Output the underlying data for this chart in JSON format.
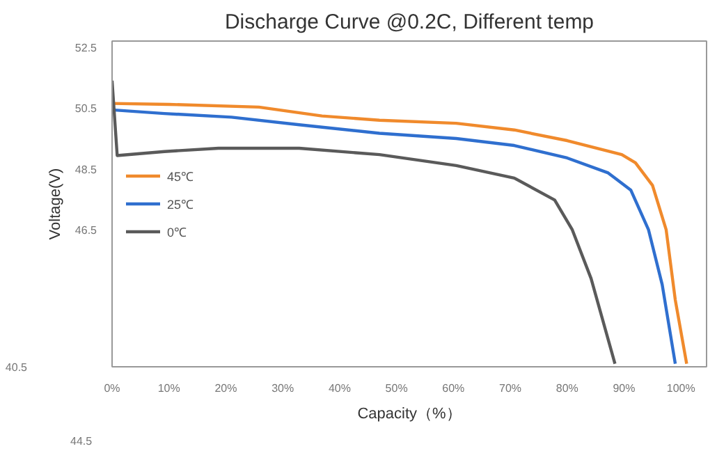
{
  "chart_data": {
    "type": "line",
    "title": "Discharge Curve @0.2C, Different temp",
    "xlabel": "Capacity（%）",
    "ylabel": "Voltage(V)",
    "xlim": [
      0,
      104.5
    ],
    "ylim": [
      42.0,
      52.7
    ],
    "xticks": [
      {
        "value": 0,
        "label": "0%"
      },
      {
        "value": 10,
        "label": "10%"
      },
      {
        "value": 20,
        "label": "20%"
      },
      {
        "value": 30,
        "label": "30%"
      },
      {
        "value": 40,
        "label": "40%"
      },
      {
        "value": 50,
        "label": "50%"
      },
      {
        "value": 60,
        "label": "60%"
      },
      {
        "value": 70,
        "label": "70%"
      },
      {
        "value": 80,
        "label": "80%"
      },
      {
        "value": 90,
        "label": "90%"
      },
      {
        "value": 100,
        "label": "100%"
      }
    ],
    "yticks": [
      46.5,
      48.5,
      50.5,
      52.5
    ],
    "annotations": [
      "40.5",
      "44.5"
    ],
    "legend": "left",
    "grid": false,
    "line_style": "solid",
    "marker": "none",
    "series": [
      {
        "name": "45℃",
        "color": "#f08a2c",
        "x": [
          0,
          10,
          25.8,
          36.9,
          47,
          60.5,
          70.7,
          80,
          89.6,
          92,
          95,
          97.4,
          99,
          101
        ],
        "values": [
          50.65,
          50.62,
          50.53,
          50.24,
          50.1,
          50.0,
          49.78,
          49.43,
          48.97,
          48.7,
          47.96,
          46.5,
          44.2,
          42.1
        ]
      },
      {
        "name": "25℃",
        "color": "#2f6fcf",
        "x": [
          0,
          9.2,
          21,
          32.9,
          47,
          60.5,
          70.7,
          80,
          87.2,
          91.2,
          94.3,
          96.7,
          99
        ],
        "values": [
          50.44,
          50.32,
          50.2,
          49.95,
          49.67,
          49.5,
          49.27,
          48.86,
          48.37,
          47.8,
          46.5,
          44.7,
          42.1
        ]
      },
      {
        "name": "0℃",
        "color": "#5a5a5a",
        "x": [
          0,
          0.9,
          9.2,
          18.7,
          32.9,
          47,
          60.5,
          70.7,
          77.8,
          80.9,
          84.2,
          88.4
        ],
        "values": [
          51.4,
          48.94,
          49.07,
          49.18,
          49.18,
          48.97,
          48.61,
          48.2,
          47.48,
          46.5,
          44.9,
          42.1
        ]
      }
    ]
  }
}
